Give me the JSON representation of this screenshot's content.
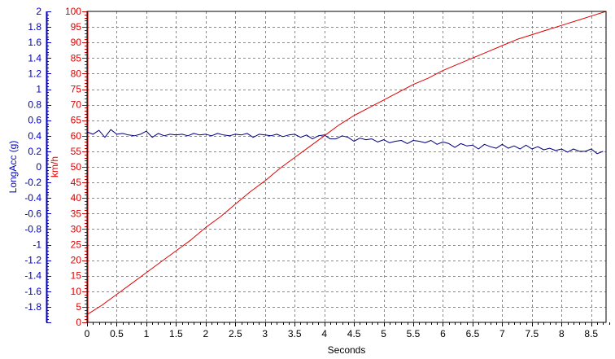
{
  "chart_data": {
    "type": "line",
    "xlabel": "Seconds",
    "xlim": [
      0,
      8.75
    ],
    "x_ticks": [
      "0",
      "0.5",
      "1",
      "1.5",
      "2",
      "2.5",
      "3",
      "3.5",
      "4",
      "4.5",
      "5",
      "5.5",
      "6",
      "6.5",
      "7",
      "7.5",
      "8",
      "8.5"
    ],
    "grid": true,
    "left_axis": {
      "label": "LongAcc (g)",
      "color": "#0000c8",
      "ylim": [
        -2,
        2
      ],
      "ticks": [
        "2",
        "1.8",
        "1.6",
        "1.4",
        "1.2",
        "1",
        "0.8",
        "0.6",
        "0.4",
        "0.2",
        "0",
        "-0.2",
        "-0.4",
        "-0.6",
        "-0.8",
        "-1",
        "-1.2",
        "-1.4",
        "-1.6",
        "-1.8"
      ]
    },
    "right_axis": {
      "label": "km/h",
      "color": "#e00000",
      "ylim": [
        0,
        100
      ],
      "ticks": [
        "100",
        "95",
        "90",
        "85",
        "80",
        "75",
        "70",
        "65",
        "60",
        "55",
        "50",
        "45",
        "40",
        "35",
        "30",
        "25",
        "20",
        "15",
        "10",
        "5",
        "0"
      ]
    },
    "series": [
      {
        "axis": "left",
        "color": "#00007f",
        "x": [
          0,
          0.1,
          0.2,
          0.3,
          0.4,
          0.5,
          0.6,
          0.7,
          0.8,
          0.9,
          1.0,
          1.1,
          1.2,
          1.3,
          1.4,
          1.5,
          1.6,
          1.7,
          1.8,
          1.9,
          2.0,
          2.1,
          2.2,
          2.3,
          2.4,
          2.5,
          2.6,
          2.7,
          2.8,
          2.9,
          3.0,
          3.1,
          3.2,
          3.3,
          3.4,
          3.5,
          3.6,
          3.7,
          3.8,
          3.9,
          4.0,
          4.1,
          4.2,
          4.3,
          4.4,
          4.5,
          4.6,
          4.7,
          4.8,
          4.9,
          5.0,
          5.1,
          5.2,
          5.3,
          5.4,
          5.5,
          5.6,
          5.7,
          5.8,
          5.9,
          6.0,
          6.1,
          6.2,
          6.3,
          6.4,
          6.5,
          6.6,
          6.7,
          6.8,
          6.9,
          7.0,
          7.1,
          7.2,
          7.3,
          7.4,
          7.5,
          7.6,
          7.7,
          7.8,
          7.9,
          8.0,
          8.1,
          8.2,
          8.3,
          8.4,
          8.5,
          8.6,
          8.7
        ],
        "y": [
          0.45,
          0.42,
          0.47,
          0.38,
          0.48,
          0.42,
          0.43,
          0.41,
          0.4,
          0.42,
          0.46,
          0.38,
          0.43,
          0.4,
          0.42,
          0.41,
          0.42,
          0.4,
          0.43,
          0.41,
          0.42,
          0.4,
          0.43,
          0.41,
          0.4,
          0.42,
          0.41,
          0.43,
          0.38,
          0.42,
          0.41,
          0.4,
          0.42,
          0.39,
          0.41,
          0.42,
          0.38,
          0.41,
          0.36,
          0.4,
          0.41,
          0.36,
          0.36,
          0.4,
          0.38,
          0.33,
          0.37,
          0.35,
          0.36,
          0.32,
          0.35,
          0.31,
          0.33,
          0.34,
          0.3,
          0.34,
          0.33,
          0.31,
          0.34,
          0.29,
          0.32,
          0.3,
          0.25,
          0.3,
          0.27,
          0.28,
          0.23,
          0.29,
          0.26,
          0.24,
          0.29,
          0.24,
          0.27,
          0.23,
          0.28,
          0.23,
          0.26,
          0.22,
          0.24,
          0.21,
          0.23,
          0.19,
          0.23,
          0.2,
          0.2,
          0.23,
          0.17,
          0.2
        ]
      },
      {
        "axis": "right",
        "color": "#e00000",
        "x": [
          0,
          0.25,
          0.5,
          0.75,
          1.0,
          1.25,
          1.5,
          1.75,
          2.0,
          2.25,
          2.5,
          2.75,
          3.0,
          3.25,
          3.5,
          3.75,
          4.0,
          4.25,
          4.5,
          4.75,
          5.0,
          5.25,
          5.5,
          5.75,
          6.0,
          6.25,
          6.5,
          6.75,
          7.0,
          7.25,
          7.5,
          7.75,
          8.0,
          8.25,
          8.5,
          8.75
        ],
        "y": [
          2.5,
          5.5,
          9.0,
          12.5,
          16.0,
          19.5,
          23.0,
          26.5,
          30.5,
          34.0,
          38.0,
          42.0,
          45.5,
          49.5,
          53.0,
          56.5,
          60.0,
          63.5,
          66.5,
          69.0,
          71.5,
          74.0,
          76.5,
          78.5,
          81.0,
          83.0,
          85.0,
          87.0,
          89.0,
          91.0,
          92.5,
          94.0,
          95.5,
          97.0,
          98.5,
          100.0
        ]
      }
    ]
  }
}
